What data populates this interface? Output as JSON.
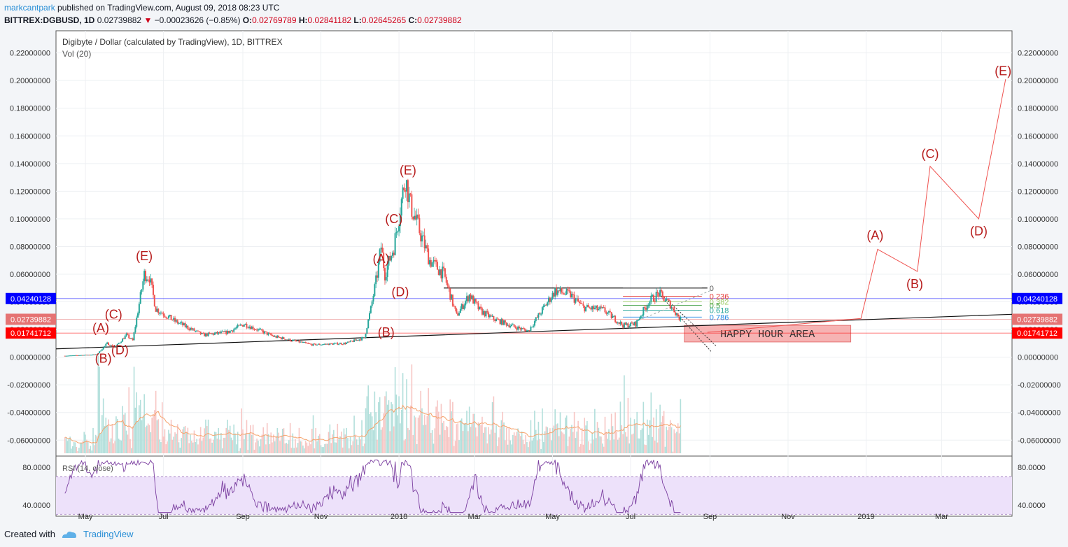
{
  "header": {
    "author": "markcantpark",
    "published_text": "published on TradingView.com, August 09, 2018 08:23 UTC",
    "symbol": "BITTREX:DGBUSD, 1D",
    "last": "0.02739882",
    "change": "−0.00023626 (−0.85%)",
    "o_label": "O:",
    "o_value": "0.02769789",
    "h_label": "H:",
    "h_value": "0.02841182",
    "l_label": "L:",
    "l_value": "0.02645265",
    "c_label": "C:",
    "c_value": "0.02739882"
  },
  "chart": {
    "title": "Digibyte / Dollar (calculated by TradingView), 1D, BITTREX",
    "vol_label": "Vol (20)",
    "rsi_label": "RSI (14, close)",
    "annotation": "HAPPY HOUR AREA",
    "colors": {
      "up": "#26a69a",
      "down": "#ef5350",
      "wave": "#b71c1c",
      "badge_blue": "#0000ff",
      "badge_red": "#ff0000",
      "badge_salmon": "#e57373",
      "rsi_line": "#7b3fa0",
      "rsi_band": "#ede1fa"
    }
  },
  "footer": {
    "created_with": "Created with",
    "brand": "TradingView"
  },
  "chart_data": {
    "type": "candlestick",
    "y_axis": {
      "ticks": [
        "0.22000000",
        "0.20000000",
        "0.18000000",
        "0.16000000",
        "0.14000000",
        "0.12000000",
        "0.10000000",
        "0.08000000",
        "0.06000000",
        "0.04000000",
        "0.02000000",
        "0.00000000",
        "-0.02000000",
        "-0.04000000",
        "-0.06000000"
      ],
      "tick_values": [
        0.22,
        0.2,
        0.18,
        0.16,
        0.14,
        0.12,
        0.1,
        0.08,
        0.06,
        0.04,
        0.02,
        0.0,
        -0.02,
        -0.04,
        -0.06
      ],
      "range": [
        -0.0715,
        0.236
      ]
    },
    "x_axis": {
      "ticks": [
        "May",
        "Jul",
        "Sep",
        "Nov",
        "2018",
        "Mar",
        "May",
        "Jul",
        "Sep",
        "Nov",
        "2019",
        "Mar"
      ],
      "tick_dates": [
        "2017-05",
        "2017-07",
        "2017-09",
        "2017-11",
        "2018-01",
        "2018-03",
        "2018-05",
        "2018-07",
        "2018-09",
        "2018-11",
        "2019-01",
        "2019-03"
      ]
    },
    "price_badges": [
      {
        "value": 0.04240128,
        "label": "0.04240128",
        "style": "blue"
      },
      {
        "value": 0.02739882,
        "label": "0.02739882",
        "style": "salmon"
      },
      {
        "value": 0.01741712,
        "label": "0.01741712",
        "style": "red"
      }
    ],
    "price_path": [
      {
        "date": "2017-04-15",
        "price": 0.001
      },
      {
        "date": "2017-05-10",
        "price": 0.002
      },
      {
        "date": "2017-05-18",
        "price": 0.01
      },
      {
        "date": "2017-05-24",
        "price": 0.007
      },
      {
        "date": "2017-06-02",
        "price": 0.016
      },
      {
        "date": "2017-06-07",
        "price": 0.012
      },
      {
        "date": "2017-06-16",
        "price": 0.06
      },
      {
        "date": "2017-06-20",
        "price": 0.058
      },
      {
        "date": "2017-06-25",
        "price": 0.035
      },
      {
        "date": "2017-07-10",
        "price": 0.026
      },
      {
        "date": "2017-08-01",
        "price": 0.016
      },
      {
        "date": "2017-08-20",
        "price": 0.018
      },
      {
        "date": "2017-09-02",
        "price": 0.024
      },
      {
        "date": "2017-09-25",
        "price": 0.015
      },
      {
        "date": "2017-10-25",
        "price": 0.009
      },
      {
        "date": "2017-11-20",
        "price": 0.01
      },
      {
        "date": "2017-12-05",
        "price": 0.014
      },
      {
        "date": "2017-12-10",
        "price": 0.035
      },
      {
        "date": "2017-12-15",
        "price": 0.06
      },
      {
        "date": "2017-12-18",
        "price": 0.08
      },
      {
        "date": "2017-12-21",
        "price": 0.06
      },
      {
        "date": "2017-12-28",
        "price": 0.08
      },
      {
        "date": "2018-01-06",
        "price": 0.13
      },
      {
        "date": "2018-01-10",
        "price": 0.11
      },
      {
        "date": "2018-01-25",
        "price": 0.07
      },
      {
        "date": "2018-02-05",
        "price": 0.06
      },
      {
        "date": "2018-02-15",
        "price": 0.03
      },
      {
        "date": "2018-02-25",
        "price": 0.045
      },
      {
        "date": "2018-03-05",
        "price": 0.034
      },
      {
        "date": "2018-03-15",
        "price": 0.028
      },
      {
        "date": "2018-04-01",
        "price": 0.022
      },
      {
        "date": "2018-04-12",
        "price": 0.019
      },
      {
        "date": "2018-04-20",
        "price": 0.03
      },
      {
        "date": "2018-05-03",
        "price": 0.048
      },
      {
        "date": "2018-05-15",
        "price": 0.045
      },
      {
        "date": "2018-05-25",
        "price": 0.036
      },
      {
        "date": "2018-06-10",
        "price": 0.034
      },
      {
        "date": "2018-06-25",
        "price": 0.023
      },
      {
        "date": "2018-07-05",
        "price": 0.024
      },
      {
        "date": "2018-07-15",
        "price": 0.04
      },
      {
        "date": "2018-07-23",
        "price": 0.046
      },
      {
        "date": "2018-08-01",
        "price": 0.038
      },
      {
        "date": "2018-08-09",
        "price": 0.027
      }
    ],
    "rsi": {
      "ticks": [
        "80.0000",
        "40.0000"
      ],
      "tick_values": [
        80,
        40
      ],
      "range": [
        28,
        92
      ],
      "band": [
        30,
        70
      ]
    },
    "trendlines": [
      {
        "from": {
          "date": "2017-04-08",
          "price": 0.006
        },
        "to": {
          "date": "2019-04-25",
          "price": 0.031
        }
      },
      {
        "from": {
          "date": "2018-02-05",
          "price": 0.05
        },
        "to": {
          "date": "2018-08-30",
          "price": 0.05
        }
      }
    ],
    "fib_levels": [
      {
        "label": "0",
        "value": 0.05,
        "color": "#555555"
      },
      {
        "label": "0.236",
        "value": 0.044,
        "color": "#e53935"
      },
      {
        "label": "0.382",
        "value": 0.04,
        "color": "#9ccc65"
      },
      {
        "label": "0.5",
        "value": 0.0375,
        "color": "#43a047"
      },
      {
        "label": "0.618",
        "value": 0.034,
        "color": "#26a69a"
      },
      {
        "label": "0.786",
        "value": 0.029,
        "color": "#1e88e5"
      }
    ],
    "happy_hour_area": {
      "from_date": "2018-08-12",
      "to_date": "2018-12-20",
      "top": 0.023,
      "bottom": 0.011
    },
    "forecast_path": [
      {
        "date": "2018-08-30",
        "price": 0.018
      },
      {
        "date": "2018-12-28",
        "price": 0.028
      },
      {
        "date": "2019-01-10",
        "price": 0.078
      },
      {
        "date": "2019-02-10",
        "price": 0.062
      },
      {
        "date": "2019-02-20",
        "price": 0.138
      },
      {
        "date": "2019-03-30",
        "price": 0.1
      },
      {
        "date": "2019-04-20",
        "price": 0.201
      }
    ],
    "wave_labels": [
      {
        "text": "(A)",
        "date": "2017-05-13",
        "price": 0.018
      },
      {
        "text": "(B)",
        "date": "2017-05-15",
        "price": -0.004
      },
      {
        "text": "(C)",
        "date": "2017-05-23",
        "price": 0.028
      },
      {
        "text": "(D)",
        "date": "2017-05-28",
        "price": 0.002
      },
      {
        "text": "(E)",
        "date": "2017-06-16",
        "price": 0.07
      },
      {
        "text": "(A)",
        "date": "2017-12-18",
        "price": 0.068
      },
      {
        "text": "(B)",
        "date": "2017-12-22",
        "price": 0.015
      },
      {
        "text": "(C)",
        "date": "2017-12-28",
        "price": 0.097
      },
      {
        "text": "(D)",
        "date": "2018-01-02",
        "price": 0.044
      },
      {
        "text": "(E)",
        "date": "2018-01-08",
        "price": 0.132
      },
      {
        "text": "(A)",
        "date": "2019-01-08",
        "price": 0.085
      },
      {
        "text": "(B)",
        "date": "2019-02-08",
        "price": 0.05
      },
      {
        "text": "(C)",
        "date": "2019-02-20",
        "price": 0.144
      },
      {
        "text": "(D)",
        "date": "2019-03-30",
        "price": 0.088
      },
      {
        "text": "(E)",
        "date": "2019-04-18",
        "price": 0.204
      }
    ]
  }
}
